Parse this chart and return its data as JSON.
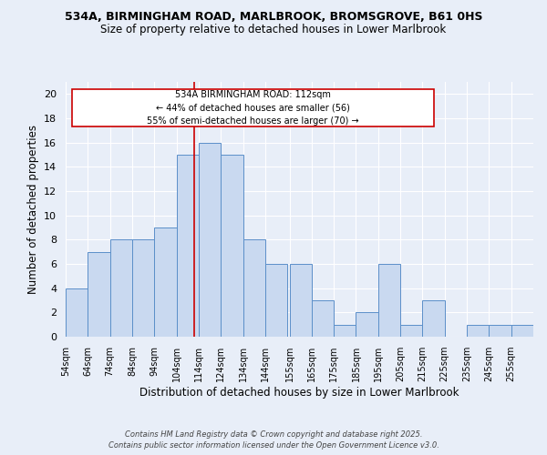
{
  "title1": "534A, BIRMINGHAM ROAD, MARLBROOK, BROMSGROVE, B61 0HS",
  "title2": "Size of property relative to detached houses in Lower Marlbrook",
  "xlabel": "Distribution of detached houses by size in Lower Marlbrook",
  "ylabel": "Number of detached properties",
  "bin_labels": [
    "54sqm",
    "64sqm",
    "74sqm",
    "84sqm",
    "94sqm",
    "104sqm",
    "114sqm",
    "124sqm",
    "134sqm",
    "144sqm",
    "155sqm",
    "165sqm",
    "175sqm",
    "185sqm",
    "195sqm",
    "205sqm",
    "215sqm",
    "225sqm",
    "235sqm",
    "245sqm",
    "255sqm"
  ],
  "bin_edges": [
    54,
    64,
    74,
    84,
    94,
    104,
    114,
    124,
    134,
    144,
    155,
    165,
    175,
    185,
    195,
    205,
    215,
    225,
    235,
    245,
    255
  ],
  "bar_heights": [
    4,
    7,
    8,
    8,
    9,
    15,
    16,
    15,
    8,
    6,
    6,
    3,
    1,
    2,
    6,
    1,
    3,
    0,
    1,
    1,
    1
  ],
  "bar_color": "#c9d9f0",
  "bar_edgecolor": "#5b8fc9",
  "redline_x": 112,
  "ylim": [
    0,
    21
  ],
  "yticks": [
    0,
    2,
    4,
    6,
    8,
    10,
    12,
    14,
    16,
    18,
    20
  ],
  "annotation_line1": "534A BIRMINGHAM ROAD: 112sqm",
  "annotation_line2": "← 44% of detached houses are smaller (56)",
  "annotation_line3": "55% of semi-detached houses are larger (70) →",
  "annotation_box_color": "#ffffff",
  "annotation_box_edgecolor": "#cc0000",
  "footer1": "Contains HM Land Registry data © Crown copyright and database right 2025.",
  "footer2": "Contains public sector information licensed under the Open Government Licence v3.0.",
  "background_color": "#e8eef8",
  "plot_background_color": "#e8eef8"
}
